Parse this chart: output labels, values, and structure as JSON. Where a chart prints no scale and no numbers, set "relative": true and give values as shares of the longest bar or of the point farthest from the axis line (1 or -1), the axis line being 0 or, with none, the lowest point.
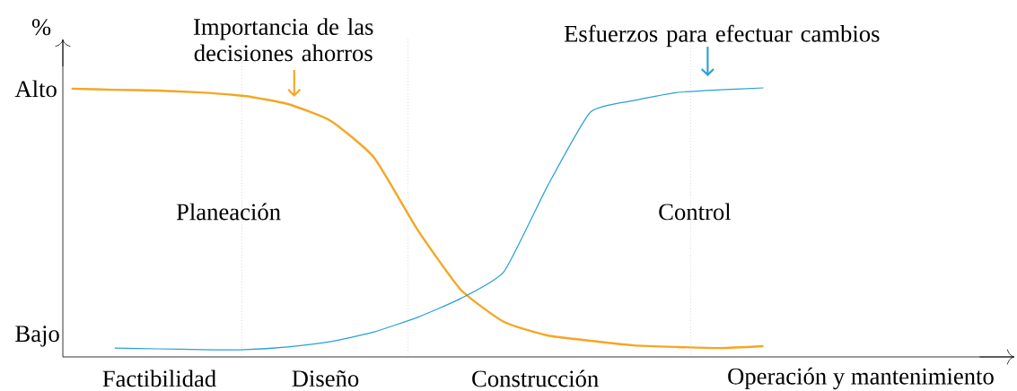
{
  "chart_data": {
    "type": "line",
    "ylabel": "%",
    "relative": true,
    "categories": [
      null,
      null,
      null,
      null,
      null,
      null,
      null,
      null,
      null,
      null,
      null,
      null,
      null,
      null,
      null,
      null,
      null,
      null,
      null,
      null,
      null,
      null
    ],
    "grid": false,
    "legend": false,
    "marker": "none",
    "line_style": "solid",
    "annotations": [
      "Planeación",
      "Control",
      "Alto",
      "Bajo",
      "Factibilidad",
      "Diseño",
      "Construcción",
      "Operación y mantenimiento"
    ],
    "series": [
      {
        "name": "Importancia de las decisiones ahorros",
        "color": "#f5a623",
        "values": [
          0.997,
          0.993,
          0.99,
          0.983,
          0.97,
          0.94,
          0.877,
          0.74,
          0.473,
          0.25,
          0.13,
          0.08,
          0.06,
          0.043,
          0.037,
          0.033,
          0.04,
          null,
          null,
          null,
          null,
          null
        ]
      },
      {
        "name": "Esfuerzos para efectuar cambios",
        "color": "#2a9fd6",
        "values": [
          null,
          0.033,
          0.03,
          0.027,
          0.027,
          0.037,
          0.057,
          0.093,
          0.147,
          0.217,
          0.317,
          0.633,
          0.91,
          0.953,
          0.983,
          0.993,
          1.0,
          null,
          null,
          null,
          null,
          null
        ]
      }
    ]
  }
}
